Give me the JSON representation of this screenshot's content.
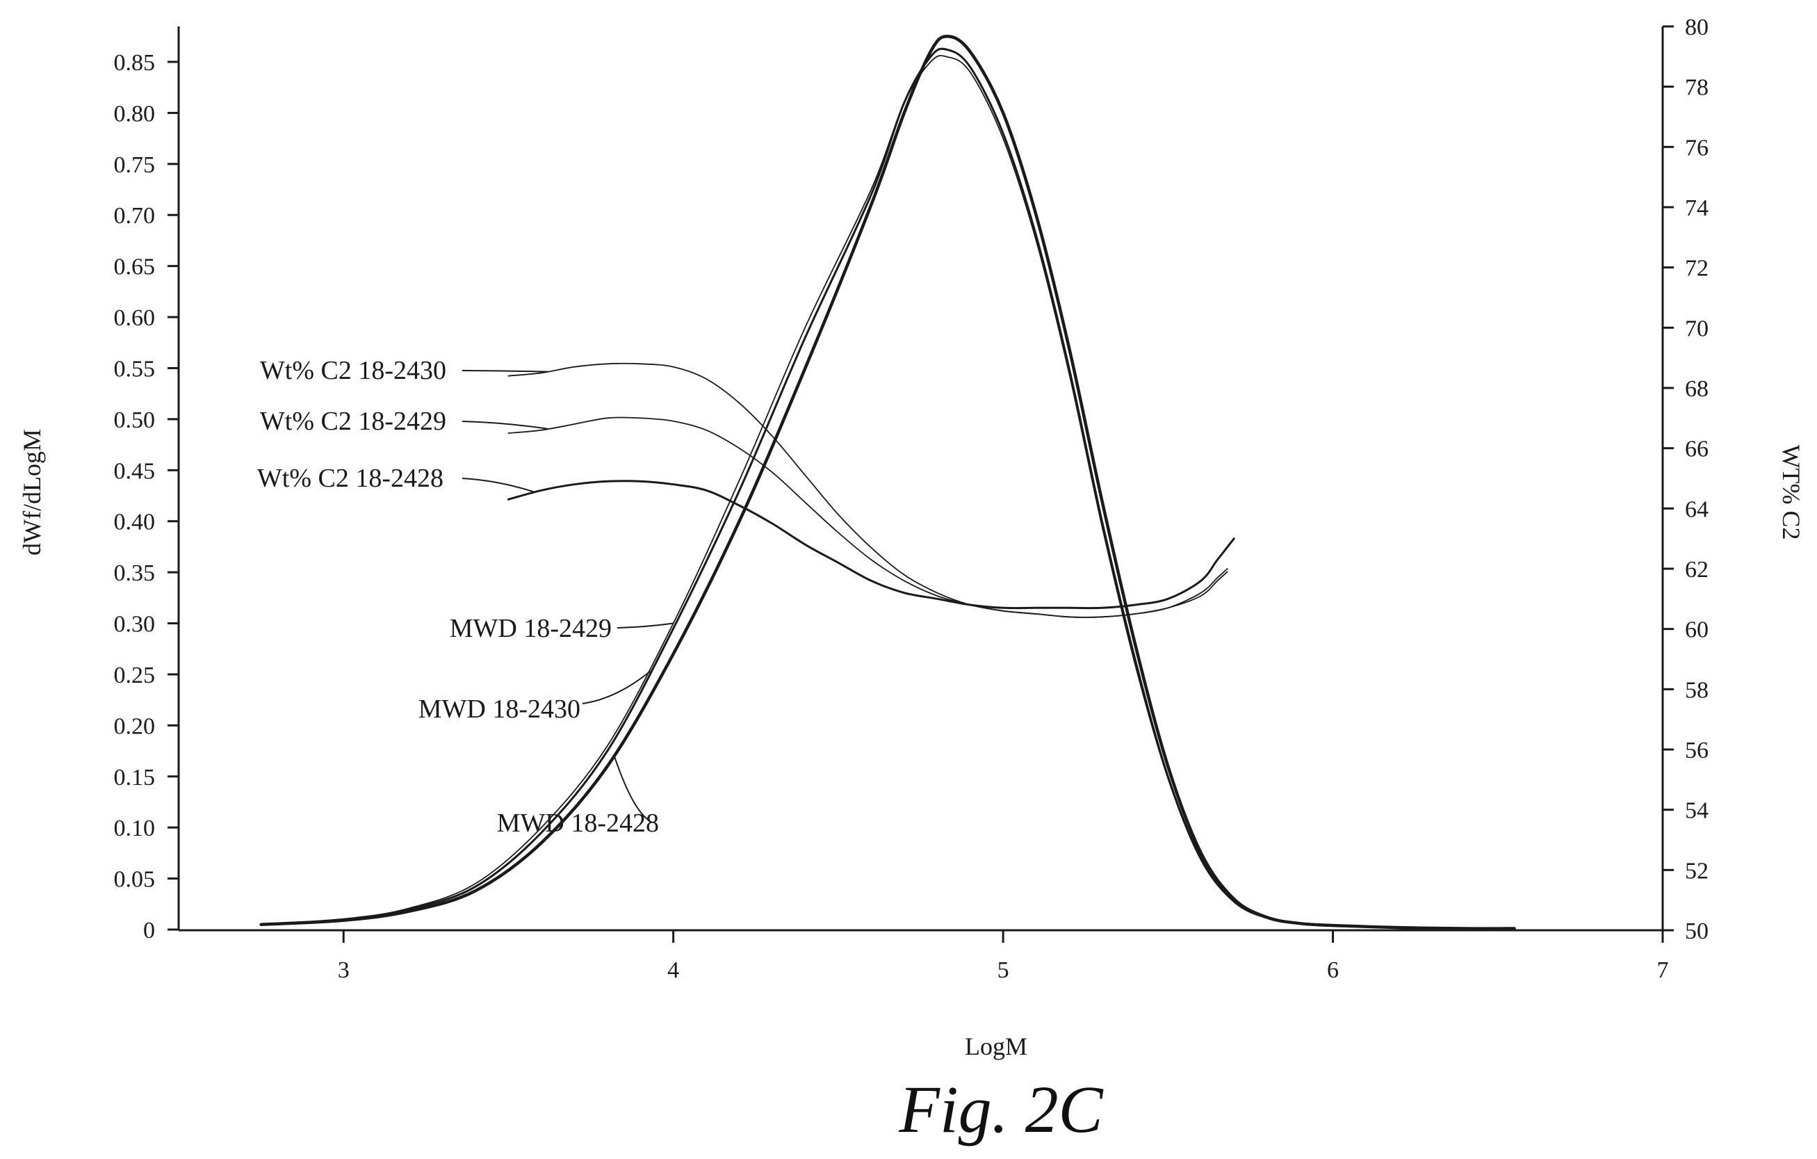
{
  "figure_caption": "Fig.  2C",
  "chart_data": {
    "type": "line",
    "xlabel": "LogM",
    "ylabel": "dWf/dLogM",
    "y2label": "WT% C2",
    "xlim": [
      2.5,
      7
    ],
    "ylim": [
      0,
      0.89
    ],
    "y2lim": [
      50,
      80
    ],
    "xticks": [
      "3",
      "4",
      "5",
      "6",
      "7"
    ],
    "yticks": [
      "0",
      "0.05",
      "0.10",
      "0.15",
      "0.20",
      "0.25",
      "0.30",
      "0.35",
      "0.40",
      "0.45",
      "0.50",
      "0.55",
      "0.60",
      "0.65",
      "0.70",
      "0.75",
      "0.80",
      "0.85"
    ],
    "y2ticks": [
      "50",
      "52",
      "54",
      "56",
      "58",
      "60",
      "62",
      "64",
      "66",
      "68",
      "70",
      "72",
      "74",
      "76",
      "78",
      "80"
    ],
    "grid": false,
    "series": [
      {
        "name": "MWD 18-2428",
        "axis": "left",
        "style": "bold",
        "x": [
          2.75,
          3.0,
          3.2,
          3.4,
          3.6,
          3.8,
          4.0,
          4.2,
          4.4,
          4.6,
          4.7,
          4.78,
          4.83,
          4.9,
          5.0,
          5.1,
          5.2,
          5.3,
          5.4,
          5.5,
          5.6,
          5.7,
          5.8,
          5.9,
          6.0,
          6.2,
          6.4,
          6.55
        ],
        "y": [
          0.005,
          0.009,
          0.018,
          0.038,
          0.085,
          0.16,
          0.27,
          0.4,
          0.55,
          0.71,
          0.8,
          0.86,
          0.875,
          0.86,
          0.8,
          0.7,
          0.57,
          0.42,
          0.28,
          0.16,
          0.075,
          0.03,
          0.012,
          0.006,
          0.004,
          0.002,
          0.001,
          0.001
        ]
      },
      {
        "name": "MWD 18-2430",
        "axis": "left",
        "style": "medium",
        "x": [
          2.75,
          3.0,
          3.2,
          3.4,
          3.6,
          3.8,
          4.0,
          4.2,
          4.4,
          4.6,
          4.7,
          4.78,
          4.83,
          4.9,
          5.0,
          5.1,
          5.2,
          5.3,
          5.4,
          5.5,
          5.6,
          5.7,
          5.8,
          5.9,
          6.0,
          6.2,
          6.4,
          6.55
        ],
        "y": [
          0.005,
          0.01,
          0.02,
          0.042,
          0.095,
          0.175,
          0.295,
          0.43,
          0.58,
          0.72,
          0.81,
          0.855,
          0.862,
          0.845,
          0.78,
          0.68,
          0.55,
          0.4,
          0.265,
          0.15,
          0.07,
          0.028,
          0.012,
          0.006,
          0.004,
          0.002,
          0.001,
          0.001
        ]
      },
      {
        "name": "MWD 18-2429",
        "axis": "left",
        "style": "thin",
        "x": [
          2.75,
          3.0,
          3.2,
          3.4,
          3.6,
          3.8,
          4.0,
          4.2,
          4.4,
          4.6,
          4.7,
          4.78,
          4.83,
          4.9,
          5.0,
          5.1,
          5.2,
          5.3,
          5.4,
          5.5,
          5.6,
          5.7,
          5.8,
          5.9,
          6.0,
          6.2,
          6.4,
          6.55
        ],
        "y": [
          0.005,
          0.01,
          0.021,
          0.045,
          0.1,
          0.18,
          0.3,
          0.44,
          0.59,
          0.725,
          0.81,
          0.85,
          0.855,
          0.84,
          0.775,
          0.675,
          0.545,
          0.395,
          0.26,
          0.148,
          0.068,
          0.027,
          0.011,
          0.006,
          0.004,
          0.002,
          0.001,
          0.001
        ]
      },
      {
        "name": "Wt% C2 18-2430",
        "axis": "right",
        "style": "thin",
        "x": [
          3.5,
          3.6,
          3.7,
          3.8,
          3.9,
          4.0,
          4.1,
          4.2,
          4.3,
          4.4,
          4.5,
          4.6,
          4.7,
          4.8,
          4.9,
          5.0,
          5.1,
          5.2,
          5.3,
          5.4,
          5.5,
          5.6,
          5.65,
          5.68
        ],
        "y": [
          68.4,
          68.5,
          68.7,
          68.8,
          68.8,
          68.7,
          68.3,
          67.5,
          66.4,
          65.1,
          63.8,
          62.7,
          61.8,
          61.2,
          60.8,
          60.6,
          60.5,
          60.4,
          60.4,
          60.5,
          60.7,
          61.2,
          61.7,
          62.0
        ]
      },
      {
        "name": "Wt% C2 18-2429",
        "axis": "right",
        "style": "thin",
        "x": [
          3.5,
          3.6,
          3.7,
          3.8,
          3.9,
          4.0,
          4.1,
          4.2,
          4.3,
          4.4,
          4.5,
          4.6,
          4.7,
          4.8,
          4.9,
          5.0,
          5.1,
          5.2,
          5.3,
          5.4,
          5.5,
          5.6,
          5.65,
          5.68
        ],
        "y": [
          66.5,
          66.6,
          66.8,
          67.0,
          67.0,
          66.9,
          66.6,
          66.0,
          65.2,
          64.2,
          63.2,
          62.3,
          61.6,
          61.1,
          60.8,
          60.6,
          60.5,
          60.4,
          60.4,
          60.5,
          60.7,
          61.1,
          61.6,
          61.9
        ]
      },
      {
        "name": "Wt% C2 18-2428",
        "axis": "right",
        "style": "medium",
        "x": [
          3.5,
          3.6,
          3.7,
          3.8,
          3.9,
          4.0,
          4.1,
          4.2,
          4.3,
          4.4,
          4.5,
          4.6,
          4.7,
          4.8,
          4.9,
          5.0,
          5.1,
          5.2,
          5.3,
          5.4,
          5.5,
          5.6,
          5.65,
          5.7
        ],
        "y": [
          64.3,
          64.6,
          64.8,
          64.9,
          64.9,
          64.8,
          64.6,
          64.1,
          63.5,
          62.8,
          62.2,
          61.6,
          61.2,
          61.0,
          60.8,
          60.7,
          60.7,
          60.7,
          60.7,
          60.8,
          61.0,
          61.6,
          62.3,
          63.0
        ]
      }
    ],
    "annotations": [
      {
        "text": "Wt% C2 18-2430",
        "series": "Wt% C2 18-2430"
      },
      {
        "text": "Wt% C2 18-2429",
        "series": "Wt% C2 18-2429"
      },
      {
        "text": "Wt% C2 18-2428",
        "series": "Wt% C2 18-2428"
      },
      {
        "text": "MWD 18-2429",
        "series": "MWD 18-2429"
      },
      {
        "text": "MWD 18-2430",
        "series": "MWD 18-2430"
      },
      {
        "text": "MWD 18-2428",
        "series": "MWD 18-2428"
      }
    ]
  }
}
